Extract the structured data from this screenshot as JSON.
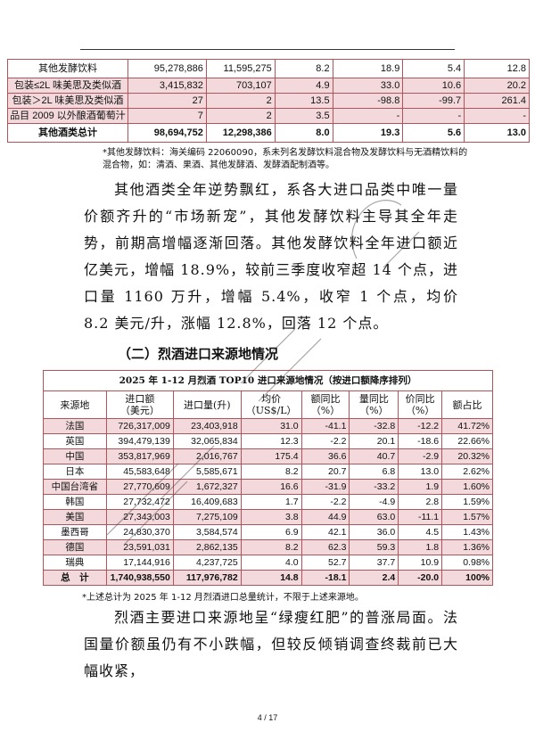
{
  "table1": {
    "rows": [
      {
        "name": "其他发酵饮料",
        "value": "95,278,886",
        "volume": "11,595,275",
        "price": "8.2",
        "value_yoy": "18.9",
        "volume_yoy": "5.4",
        "price_yoy": "12.8"
      },
      {
        "name": "包装≤2L 味美思及类似酒",
        "value": "3,415,832",
        "volume": "703,107",
        "price": "4.9",
        "value_yoy": "33.0",
        "volume_yoy": "10.6",
        "price_yoy": "20.2"
      },
      {
        "name": "包装＞2L 味美思及类似酒",
        "value": "27",
        "volume": "2",
        "price": "13.5",
        "value_yoy": "-98.8",
        "volume_yoy": "-99.7",
        "price_yoy": "261.4"
      },
      {
        "name": "品目 2009 以外酿酒葡萄汁",
        "value": "7",
        "volume": "2",
        "price": "3.5",
        "value_yoy": "-",
        "volume_yoy": "-",
        "price_yoy": "-"
      },
      {
        "name": "其他酒类总计",
        "value": "98,694,752",
        "volume": "12,298,386",
        "price": "8.0",
        "value_yoy": "19.3",
        "volume_yoy": "5.6",
        "price_yoy": "13.0"
      }
    ],
    "note_line1": "*其他发酵饮料：海关编码 22060090，系未列名发酵饮料混合物及发酵饮料与无酒精饮料的",
    "note_line2": "混合物，如：清酒、果酒、其他发酵酒、发酵酒配制酒等。"
  },
  "paragraph1": "其他酒类全年逆势飘红，系各大进口品类中唯一量价额齐升的“市场新宠”，其他发酵饮料主导其全年走势，前期高增幅逐渐回落。其他发酵饮料全年进口额近亿美元，增幅 18.9%，较前三季度收窄超 14 个点，进口量 1160 万升，增幅 5.4%，收窄 1 个点，均价 8.2 美元/升，涨幅 12.8%，回落 12 个点。",
  "section_heading": "（二）烈酒进口来源地情况",
  "table2": {
    "title": "2025 年 1-12 月烈酒  TOP10 进口来源地情况（按进口额降序排列）",
    "headers": [
      "来源地",
      "进口额\n（美元）",
      "进口量(升)",
      "均价\n（US$/L）",
      "额同比\n（%）",
      "量同比\n（%）",
      "价同比\n（%）",
      "额占比"
    ],
    "rows": [
      [
        "法国",
        "726,317,009",
        "23,403,918",
        "31.0",
        "-41.1",
        "-32.8",
        "-12.2",
        "41.72%"
      ],
      [
        "英国",
        "394,479,139",
        "32,065,834",
        "12.3",
        "-2.2",
        "20.1",
        "-18.6",
        "22.66%"
      ],
      [
        "中国",
        "353,817,969",
        "2,016,767",
        "175.4",
        "36.6",
        "40.7",
        "-2.9",
        "20.32%"
      ],
      [
        "日本",
        "45,583,648",
        "5,585,671",
        "8.2",
        "20.7",
        "6.8",
        "13.0",
        "2.62%"
      ],
      [
        "中国台湾省",
        "27,770,609",
        "1,672,327",
        "16.6",
        "-31.9",
        "-33.2",
        "1.9",
        "1.60%"
      ],
      [
        "韩国",
        "27,732,472",
        "16,409,683",
        "1.7",
        "-2.2",
        "-4.9",
        "2.8",
        "1.59%"
      ],
      [
        "美国",
        "27,343,003",
        "7,275,109",
        "3.8",
        "44.9",
        "63.0",
        "-11.1",
        "1.57%"
      ],
      [
        "墨西哥",
        "24,830,370",
        "3,584,574",
        "6.9",
        "42.1",
        "36.0",
        "4.5",
        "1.43%"
      ],
      [
        "德国",
        "23,591,031",
        "2,862,135",
        "8.2",
        "62.3",
        "59.3",
        "1.8",
        "1.36%"
      ],
      [
        "瑞典",
        "17,144,916",
        "4,237,725",
        "4.0",
        "52.7",
        "37.7",
        "10.9",
        "0.98%"
      ],
      [
        "总　计",
        "1,740,938,550",
        "117,976,782",
        "14.8",
        "-18.1",
        "2.4",
        "-20.0",
        "100%"
      ]
    ],
    "note": "*上述总计为 2025 年 1-12 月烈酒进口总量统计，不限于上述来源地。"
  },
  "paragraph2": "烈酒主要进口来源地呈“绿瘦红肥”的普涨局面。法国量价额虽仍有不小跌幅，但较反倾销调查终裁前已大幅收紧，",
  "page_number": "4  /  17",
  "watermark": "中国食品土畜进出口商会（CAWS）"
}
